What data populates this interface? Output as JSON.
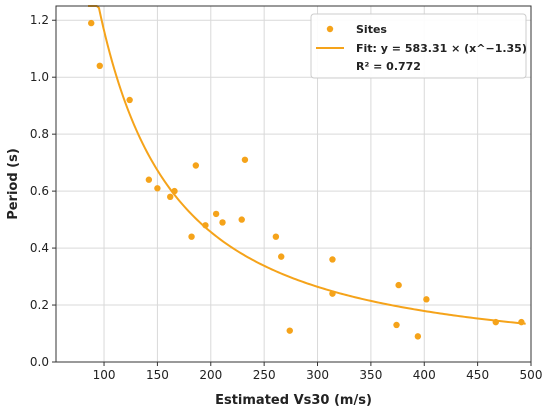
{
  "chart_data": {
    "type": "scatter",
    "xlabel": "Estimated Vs30 (m/s)",
    "ylabel": "Period (s)",
    "xlim": [
      55,
      500
    ],
    "ylim": [
      0,
      1.25
    ],
    "x_ticks": [
      100,
      150,
      200,
      250,
      300,
      350,
      400,
      450,
      500
    ],
    "y_ticks": [
      0.0,
      0.2,
      0.4,
      0.6,
      0.8,
      1.0,
      1.2
    ],
    "x_tick_labels": [
      "100",
      "150",
      "200",
      "250",
      "300",
      "350",
      "400",
      "450",
      "500"
    ],
    "y_tick_labels": [
      "0.0",
      "0.2",
      "0.4",
      "0.6",
      "0.8",
      "1.0",
      "1.2"
    ],
    "grid": true,
    "legend_position": "top-right",
    "series": [
      {
        "name": "Sites",
        "kind": "scatter",
        "color": "#f5a31a",
        "points": [
          {
            "x": 88,
            "y": 1.19
          },
          {
            "x": 96,
            "y": 1.04
          },
          {
            "x": 124,
            "y": 0.92
          },
          {
            "x": 142,
            "y": 0.64
          },
          {
            "x": 150,
            "y": 0.61
          },
          {
            "x": 162,
            "y": 0.58
          },
          {
            "x": 166,
            "y": 0.6
          },
          {
            "x": 182,
            "y": 0.44
          },
          {
            "x": 186,
            "y": 0.69
          },
          {
            "x": 195,
            "y": 0.48
          },
          {
            "x": 205,
            "y": 0.52
          },
          {
            "x": 211,
            "y": 0.49
          },
          {
            "x": 229,
            "y": 0.5
          },
          {
            "x": 232,
            "y": 0.71
          },
          {
            "x": 261,
            "y": 0.44
          },
          {
            "x": 266,
            "y": 0.37
          },
          {
            "x": 274,
            "y": 0.11
          },
          {
            "x": 314,
            "y": 0.36
          },
          {
            "x": 314,
            "y": 0.24
          },
          {
            "x": 374,
            "y": 0.13
          },
          {
            "x": 376,
            "y": 0.27
          },
          {
            "x": 394,
            "y": 0.09
          },
          {
            "x": 402,
            "y": 0.22
          },
          {
            "x": 467,
            "y": 0.14
          },
          {
            "x": 491,
            "y": 0.14
          }
        ]
      },
      {
        "name": "Fit: y = 583.31 × (x^−1.35)",
        "kind": "line",
        "color": "#f5a31a",
        "coefficient": 583.31,
        "exponent": -1.35,
        "x_range": [
          85,
          495
        ]
      }
    ],
    "annotation": "R² = 0.772"
  }
}
